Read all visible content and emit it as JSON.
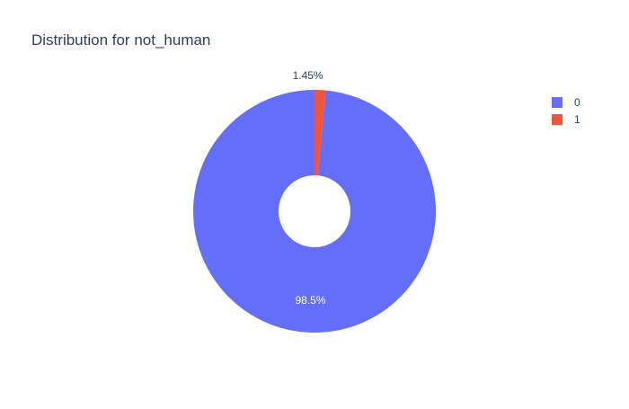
{
  "chart_data": {
    "type": "pie",
    "title": "Distribution for not_human",
    "hole": true,
    "slices": [
      {
        "label": "0",
        "value": 98.55,
        "display": "98.5%",
        "color": "#636efa",
        "text_position": "inside",
        "text_color": "#ffffff"
      },
      {
        "label": "1",
        "value": 1.45,
        "display": "1.45%",
        "color": "#ef553b",
        "text_position": "outside",
        "text_color": "#2a3f5f"
      }
    ],
    "legend": {
      "placement": "top-right",
      "entries": [
        "0",
        "1"
      ]
    }
  }
}
